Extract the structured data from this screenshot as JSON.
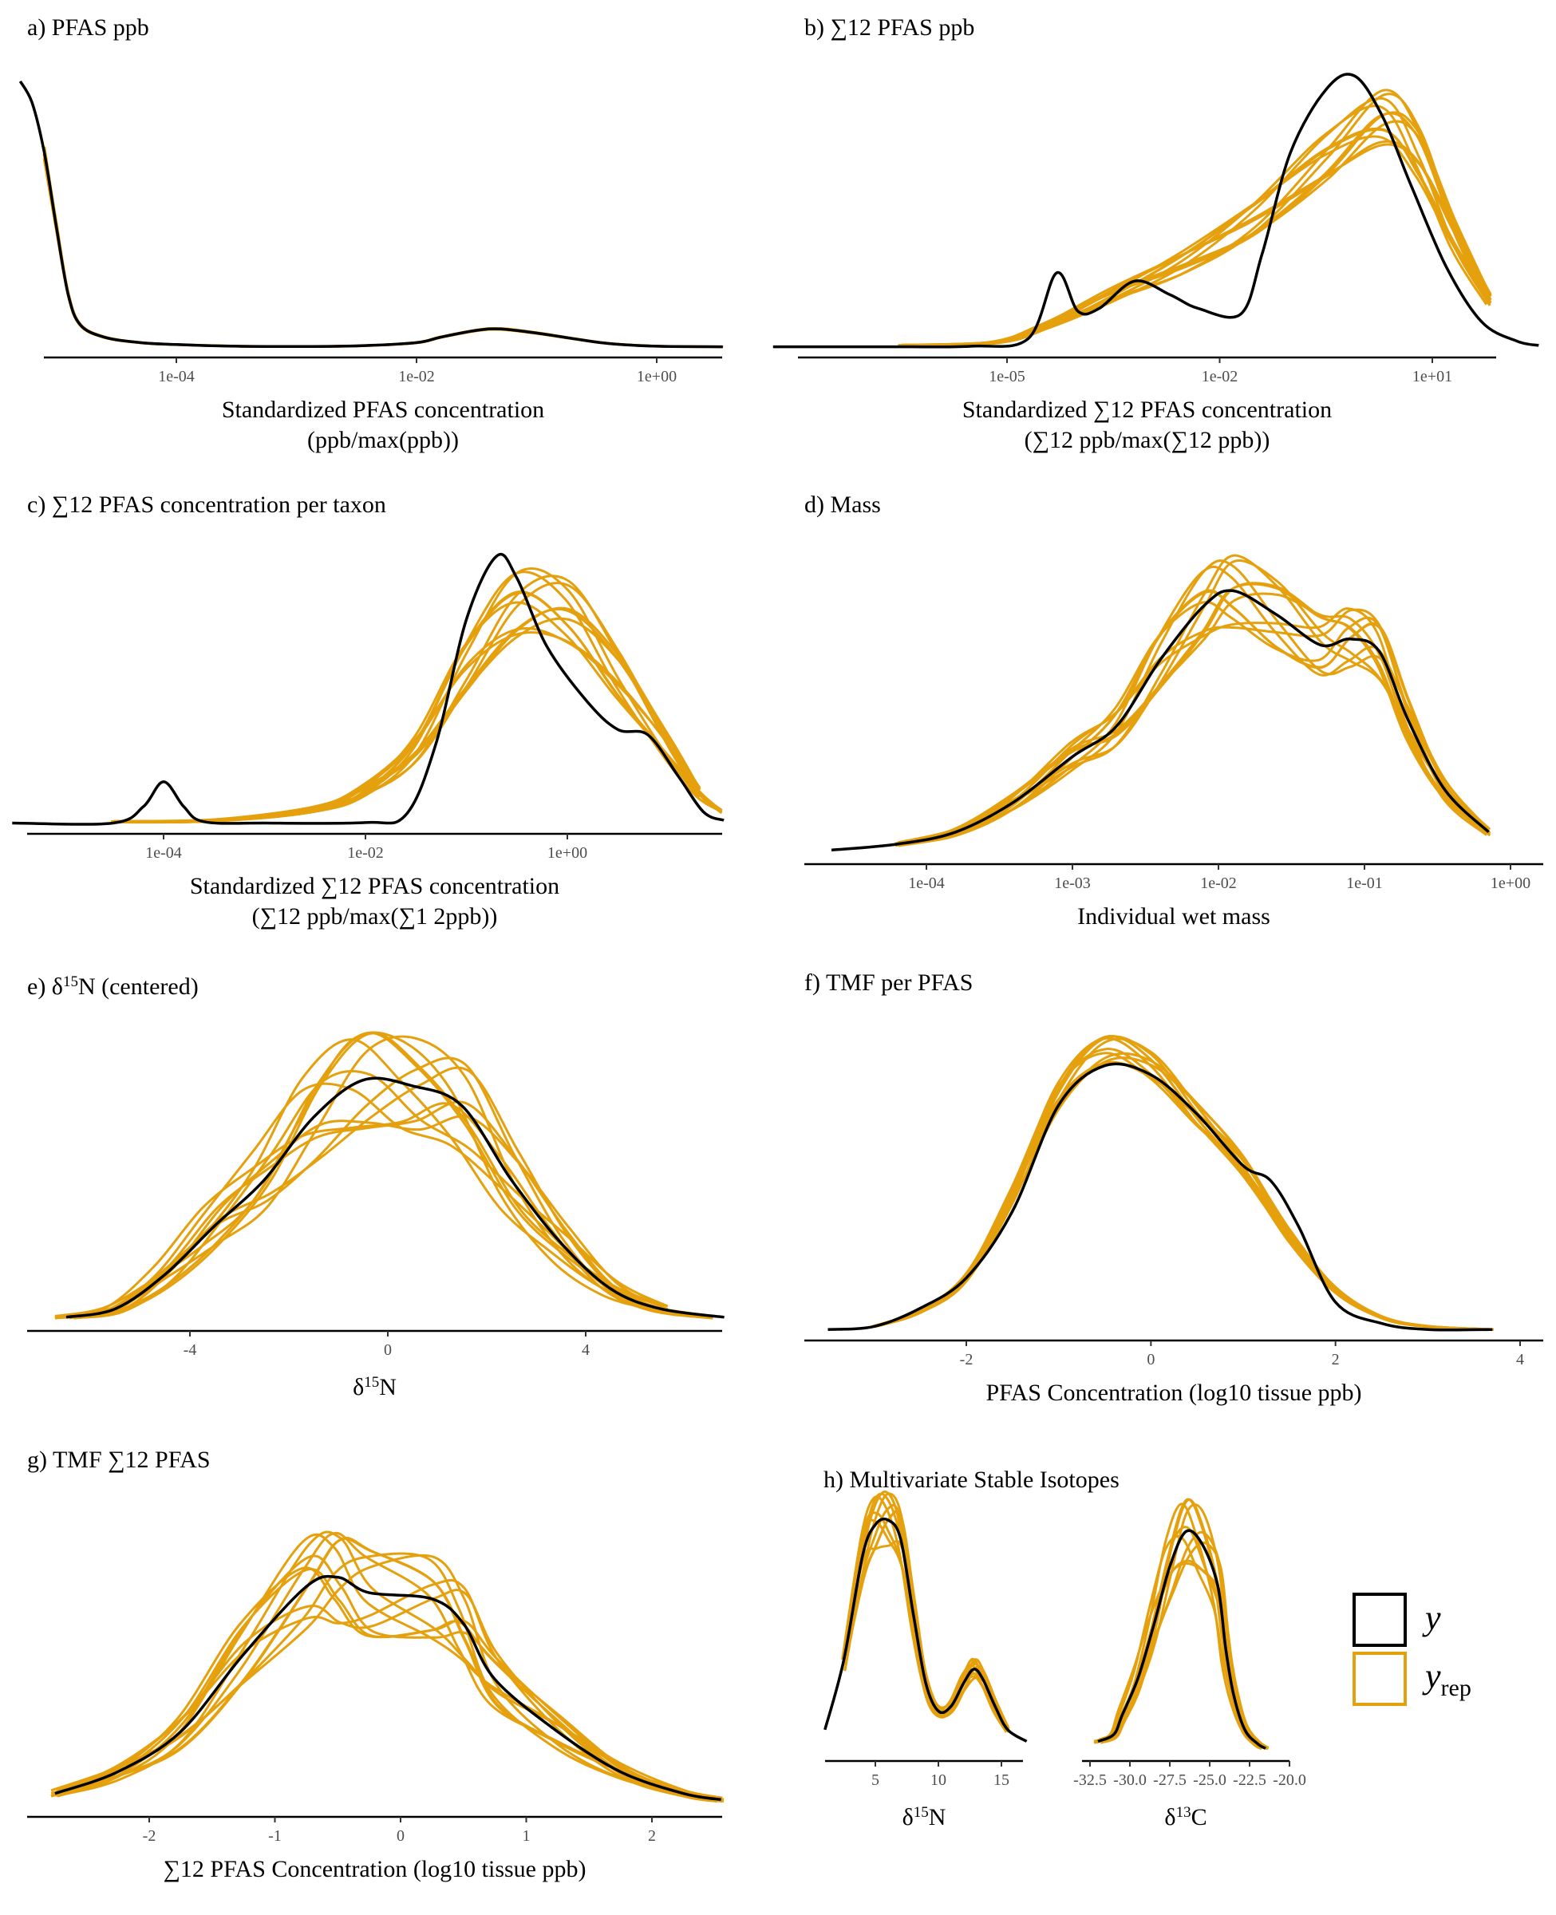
{
  "colors": {
    "y": "#000000",
    "yrep": "#E5A00D"
  },
  "legend": {
    "y_label": "y",
    "yrep_label": "y",
    "yrep_sub": "rep"
  },
  "chart_data": [
    {
      "id": "a",
      "type": "area",
      "title": "a) PFAS ppb",
      "xlabel_line1": "Standardized PFAS concentration",
      "xlabel_line2": "(ppb/max(ppb))",
      "x_scale": "log10",
      "x_range": [
        -5.3,
        0.55
      ],
      "ticks": [
        {
          "v": -4,
          "label": "1e-04"
        },
        {
          "v": -2,
          "label": "1e-02"
        },
        {
          "v": 0,
          "label": "1e+00"
        }
      ],
      "rep_spread": 0.03,
      "rep_shift": 0.01,
      "rep_count": 10,
      "observed": [
        [
          -5.3,
          0.98
        ],
        [
          -5.2,
          0.9
        ],
        [
          -5.1,
          0.72
        ],
        [
          -5.0,
          0.45
        ],
        [
          -4.9,
          0.2
        ],
        [
          -4.8,
          0.09
        ],
        [
          -4.6,
          0.045
        ],
        [
          -4.3,
          0.025
        ],
        [
          -4.0,
          0.018
        ],
        [
          -3.5,
          0.012
        ],
        [
          -3.0,
          0.011
        ],
        [
          -2.5,
          0.013
        ],
        [
          -2.0,
          0.025
        ],
        [
          -1.8,
          0.045
        ],
        [
          -1.5,
          0.07
        ],
        [
          -1.3,
          0.075
        ],
        [
          -1.0,
          0.06
        ],
        [
          -0.7,
          0.04
        ],
        [
          -0.4,
          0.022
        ],
        [
          0.0,
          0.012
        ],
        [
          0.55,
          0.01
        ]
      ]
    },
    {
      "id": "b",
      "type": "area",
      "title": "b) ∑12 PFAS ppb",
      "xlabel_line1": "Standardized ∑12 PFAS concentration",
      "xlabel_line2": "(∑12 ppb/max(∑12 ppb))",
      "x_scale": "log10",
      "x_range": [
        -8.3,
        2.5
      ],
      "ticks": [
        {
          "v": -5,
          "label": "1e-05"
        },
        {
          "v": -2,
          "label": "1e-02"
        },
        {
          "v": 1,
          "label": "1e+01"
        }
      ],
      "rep_spread": 0.12,
      "rep_shift": 0.07,
      "rep_count": 12,
      "observed": [
        [
          -8.3,
          0.01
        ],
        [
          -6.5,
          0.01
        ],
        [
          -5.5,
          0.012
        ],
        [
          -4.7,
          0.04
        ],
        [
          -4.3,
          0.28
        ],
        [
          -4.0,
          0.14
        ],
        [
          -3.7,
          0.15
        ],
        [
          -3.2,
          0.25
        ],
        [
          -2.7,
          0.2
        ],
        [
          -2.3,
          0.15
        ],
        [
          -1.7,
          0.13
        ],
        [
          -1.4,
          0.35
        ],
        [
          -1.0,
          0.72
        ],
        [
          -0.5,
          0.95
        ],
        [
          -0.1,
          1.0
        ],
        [
          0.3,
          0.85
        ],
        [
          0.7,
          0.6
        ],
        [
          1.2,
          0.3
        ],
        [
          1.7,
          0.1
        ],
        [
          2.2,
          0.03
        ],
        [
          2.5,
          0.015
        ]
      ],
      "replicate_peak": [
        [
          -8.3,
          0.01
        ],
        [
          -6.5,
          0.015
        ],
        [
          -5.2,
          0.025
        ],
        [
          -4.5,
          0.08
        ],
        [
          -3.5,
          0.2
        ],
        [
          -2.5,
          0.32
        ],
        [
          -1.5,
          0.48
        ],
        [
          -0.5,
          0.7
        ],
        [
          0.3,
          0.85
        ],
        [
          0.8,
          0.72
        ],
        [
          1.3,
          0.42
        ],
        [
          1.8,
          0.18
        ],
        [
          2.2,
          0.07
        ],
        [
          2.5,
          0.03
        ]
      ]
    },
    {
      "id": "c",
      "type": "area",
      "title": "c) ∑12 PFAS concentration per taxon",
      "xlabel_line1": "Standardized ∑12 PFAS concentration",
      "xlabel_line2": "(∑12 ppb/max(∑1 2ppb))",
      "x_scale": "log10",
      "x_range": [
        -5.5,
        1.55
      ],
      "ticks": [
        {
          "v": -4,
          "label": "1e-04"
        },
        {
          "v": -2,
          "label": "1e-02"
        },
        {
          "v": 0,
          "label": "1e+00"
        }
      ],
      "rep_spread": 0.15,
      "rep_shift": 0.06,
      "rep_count": 12,
      "observed": [
        [
          -5.5,
          0.01
        ],
        [
          -4.5,
          0.01
        ],
        [
          -4.2,
          0.07
        ],
        [
          -4.0,
          0.16
        ],
        [
          -3.8,
          0.07
        ],
        [
          -3.6,
          0.015
        ],
        [
          -3.0,
          0.01
        ],
        [
          -2.0,
          0.012
        ],
        [
          -1.6,
          0.04
        ],
        [
          -1.3,
          0.3
        ],
        [
          -1.0,
          0.75
        ],
        [
          -0.7,
          0.98
        ],
        [
          -0.5,
          0.9
        ],
        [
          -0.2,
          0.65
        ],
        [
          0.2,
          0.45
        ],
        [
          0.5,
          0.35
        ],
        [
          0.8,
          0.33
        ],
        [
          1.1,
          0.18
        ],
        [
          1.35,
          0.05
        ],
        [
          1.55,
          0.02
        ]
      ],
      "replicate_peak": [
        [
          -5.5,
          0.015
        ],
        [
          -4.5,
          0.015
        ],
        [
          -3.5,
          0.02
        ],
        [
          -2.5,
          0.06
        ],
        [
          -2.0,
          0.13
        ],
        [
          -1.5,
          0.28
        ],
        [
          -1.0,
          0.58
        ],
        [
          -0.5,
          0.8
        ],
        [
          0.0,
          0.78
        ],
        [
          0.5,
          0.55
        ],
        [
          1.0,
          0.28
        ],
        [
          1.3,
          0.12
        ],
        [
          1.55,
          0.05
        ]
      ]
    },
    {
      "id": "d",
      "type": "area",
      "title": "d) Mass",
      "xlabel_line1": "Individual wet mass",
      "xlabel_line2": "",
      "x_scale": "log10",
      "x_range": [
        -4.65,
        -0.15
      ],
      "ticks": [
        {
          "v": -4,
          "label": "1e-04"
        },
        {
          "v": -3,
          "label": "1e-03"
        },
        {
          "v": -2,
          "label": "1e-02"
        },
        {
          "v": -1,
          "label": "1e-01"
        },
        {
          "v": 0,
          "label": "1e+00"
        }
      ],
      "rep_spread": 0.14,
      "rep_shift": 0.06,
      "rep_count": 12,
      "observed": [
        [
          -4.65,
          0.02
        ],
        [
          -4.2,
          0.04
        ],
        [
          -3.8,
          0.08
        ],
        [
          -3.4,
          0.18
        ],
        [
          -3.0,
          0.33
        ],
        [
          -2.7,
          0.43
        ],
        [
          -2.4,
          0.65
        ],
        [
          -2.1,
          0.83
        ],
        [
          -1.9,
          0.88
        ],
        [
          -1.6,
          0.8
        ],
        [
          -1.3,
          0.7
        ],
        [
          -1.1,
          0.72
        ],
        [
          -0.9,
          0.68
        ],
        [
          -0.7,
          0.45
        ],
        [
          -0.45,
          0.22
        ],
        [
          -0.15,
          0.08
        ]
      ]
    },
    {
      "id": "e",
      "type": "area",
      "title": "e) δ15N (centered)",
      "xlabel_line1": "δ15N",
      "xlabel_line2": "",
      "x_scale": "linear",
      "x_range": [
        -6.5,
        6.8
      ],
      "ticks": [
        {
          "v": -4,
          "label": "-4"
        },
        {
          "v": 0,
          "label": "0"
        },
        {
          "v": 4,
          "label": "4"
        }
      ],
      "rep_spread": 0.2,
      "rep_shift": 0.35,
      "rep_count": 12,
      "observed": [
        [
          -6.5,
          0.02
        ],
        [
          -5.5,
          0.05
        ],
        [
          -4.5,
          0.17
        ],
        [
          -3.5,
          0.34
        ],
        [
          -2.5,
          0.5
        ],
        [
          -1.5,
          0.72
        ],
        [
          -0.5,
          0.85
        ],
        [
          0.5,
          0.83
        ],
        [
          1.5,
          0.76
        ],
        [
          2.5,
          0.5
        ],
        [
          3.5,
          0.28
        ],
        [
          4.5,
          0.12
        ],
        [
          5.5,
          0.05
        ],
        [
          6.8,
          0.02
        ]
      ]
    },
    {
      "id": "f",
      "type": "area",
      "title": "f) TMF per PFAS",
      "xlabel_line1": "PFAS Concentration (log10 tissue ppb)",
      "xlabel_line2": "",
      "x_scale": "linear",
      "x_range": [
        -3.5,
        3.7
      ],
      "ticks": [
        {
          "v": -2,
          "label": "-2"
        },
        {
          "v": 0,
          "label": "0"
        },
        {
          "v": 2,
          "label": "2"
        },
        {
          "v": 4,
          "label": "4"
        }
      ],
      "rep_spread": 0.05,
      "rep_shift": 0.05,
      "rep_count": 12,
      "observed": [
        [
          -3.5,
          0.01
        ],
        [
          -3.0,
          0.02
        ],
        [
          -2.5,
          0.08
        ],
        [
          -2.0,
          0.18
        ],
        [
          -1.5,
          0.4
        ],
        [
          -1.0,
          0.75
        ],
        [
          -0.5,
          0.88
        ],
        [
          0.0,
          0.85
        ],
        [
          0.5,
          0.72
        ],
        [
          1.0,
          0.55
        ],
        [
          1.3,
          0.5
        ],
        [
          1.6,
          0.35
        ],
        [
          2.0,
          0.1
        ],
        [
          2.5,
          0.03
        ],
        [
          3.0,
          0.01
        ],
        [
          3.7,
          0.01
        ]
      ],
      "replicate_peak": [
        [
          -3.5,
          0.01
        ],
        [
          -3.0,
          0.02
        ],
        [
          -2.5,
          0.07
        ],
        [
          -2.0,
          0.18
        ],
        [
          -1.5,
          0.45
        ],
        [
          -1.0,
          0.78
        ],
        [
          -0.5,
          0.93
        ],
        [
          0.0,
          0.88
        ],
        [
          0.5,
          0.72
        ],
        [
          1.0,
          0.55
        ],
        [
          1.5,
          0.32
        ],
        [
          2.0,
          0.14
        ],
        [
          2.5,
          0.05
        ],
        [
          3.0,
          0.02
        ],
        [
          3.7,
          0.01
        ]
      ]
    },
    {
      "id": "g",
      "type": "area",
      "title": "g) TMF ∑12 PFAS",
      "xlabel_line1": "∑12 PFAS Concentration (log10 tissue ppb)",
      "xlabel_line2": "",
      "x_scale": "linear",
      "x_range": [
        -2.75,
        2.55
      ],
      "ticks": [
        {
          "v": -2,
          "label": "-2"
        },
        {
          "v": -1,
          "label": "-1"
        },
        {
          "v": 0,
          "label": "0"
        },
        {
          "v": 1,
          "label": "1"
        },
        {
          "v": 2,
          "label": "2"
        }
      ],
      "rep_spread": 0.2,
      "rep_shift": 0.12,
      "rep_count": 12,
      "observed": [
        [
          -2.75,
          0.05
        ],
        [
          -2.25,
          0.12
        ],
        [
          -1.75,
          0.25
        ],
        [
          -1.25,
          0.5
        ],
        [
          -0.75,
          0.72
        ],
        [
          -0.5,
          0.75
        ],
        [
          -0.25,
          0.7
        ],
        [
          0.25,
          0.68
        ],
        [
          0.5,
          0.6
        ],
        [
          0.75,
          0.42
        ],
        [
          1.25,
          0.25
        ],
        [
          1.75,
          0.12
        ],
        [
          2.25,
          0.05
        ],
        [
          2.55,
          0.03
        ]
      ]
    },
    {
      "id": "h1",
      "type": "area",
      "title": "h) Multivariate Stable Isotopes",
      "xlabel_line1": "δ15N",
      "xlabel_line2": "",
      "x_scale": "linear",
      "x_range": [
        1,
        17
      ],
      "ticks": [
        {
          "v": 5,
          "label": "5"
        },
        {
          "v": 10,
          "label": "10"
        },
        {
          "v": 15,
          "label": "15"
        }
      ],
      "rep_spread": 0.12,
      "rep_shift": 0.15,
      "rep_count": 10,
      "observed": [
        [
          1,
          0.1
        ],
        [
          2.5,
          0.4
        ],
        [
          4,
          0.85
        ],
        [
          5,
          0.98
        ],
        [
          6,
          1.0
        ],
        [
          7,
          0.92
        ],
        [
          8,
          0.6
        ],
        [
          9,
          0.3
        ],
        [
          10,
          0.18
        ],
        [
          11,
          0.2
        ],
        [
          12,
          0.3
        ],
        [
          12.8,
          0.36
        ],
        [
          13.5,
          0.32
        ],
        [
          14.5,
          0.2
        ],
        [
          15.5,
          0.1
        ],
        [
          17,
          0.05
        ]
      ]
    },
    {
      "id": "h2",
      "type": "area",
      "title": "",
      "xlabel_line1": "δ13C",
      "xlabel_line2": "",
      "x_scale": "linear",
      "x_range": [
        -32.5,
        -20
      ],
      "ticks": [
        {
          "v": -32.5,
          "label": "-32.5"
        },
        {
          "v": -30,
          "label": "-30.0"
        },
        {
          "v": -27.5,
          "label": "-27.5"
        },
        {
          "v": -25,
          "label": "-25.0"
        },
        {
          "v": -22.5,
          "label": "-22.5"
        },
        {
          "v": -20,
          "label": "-20.0"
        }
      ],
      "rep_spread": 0.15,
      "rep_shift": 0.4,
      "rep_count": 10,
      "observed": [
        [
          -32,
          0.05
        ],
        [
          -31,
          0.08
        ],
        [
          -30.5,
          0.16
        ],
        [
          -29.5,
          0.32
        ],
        [
          -28.5,
          0.55
        ],
        [
          -27.5,
          0.8
        ],
        [
          -26.5,
          0.95
        ],
        [
          -25.5,
          0.9
        ],
        [
          -24.5,
          0.72
        ],
        [
          -24,
          0.45
        ],
        [
          -23.5,
          0.25
        ],
        [
          -22.8,
          0.1
        ],
        [
          -22,
          0.04
        ],
        [
          -21.5,
          0.02
        ]
      ]
    }
  ]
}
